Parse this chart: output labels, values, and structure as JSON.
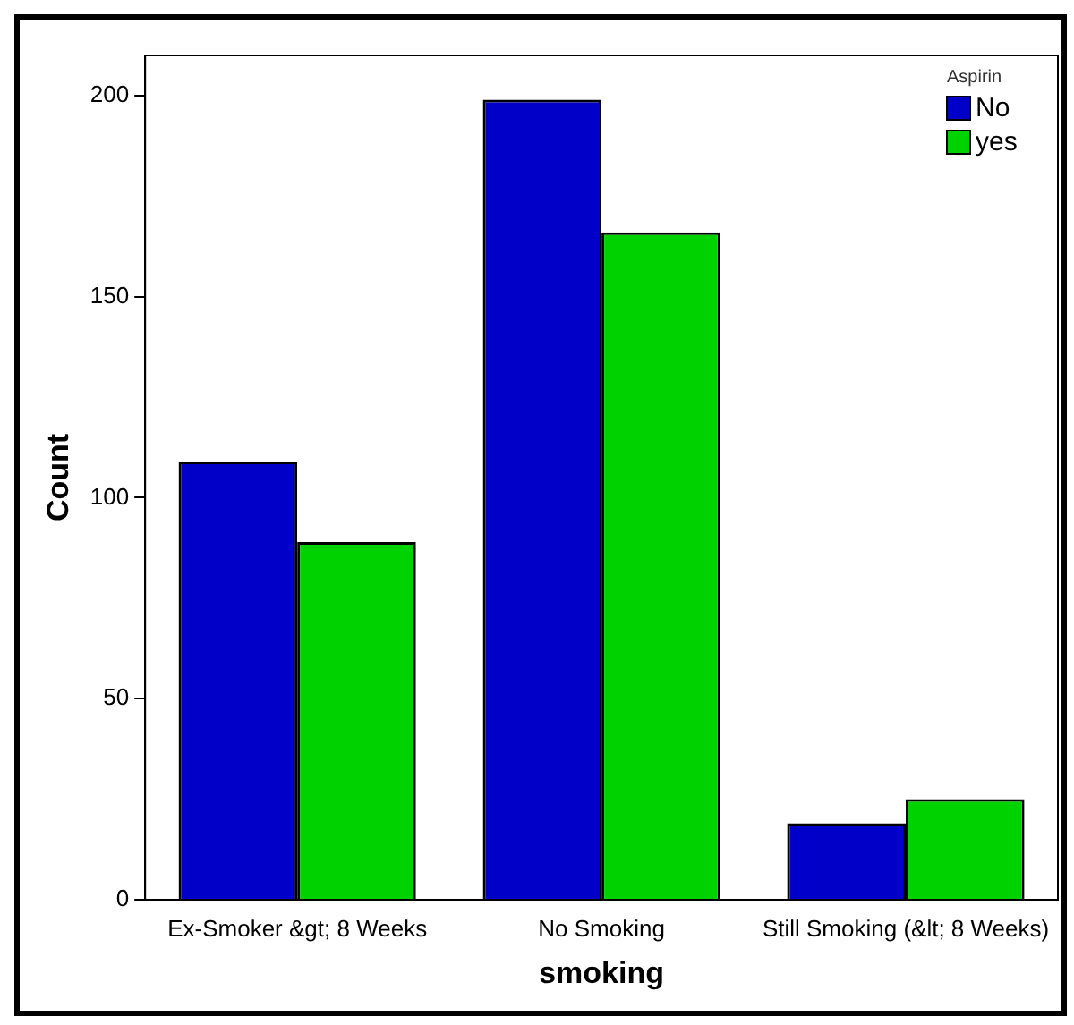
{
  "chart_data": {
    "type": "bar",
    "xlabel": "smoking",
    "ylabel": "Count",
    "legend_title": "Aspirin",
    "categories": [
      "Ex-Smoker &gt; 8 Weeks",
      "No Smoking",
      "Still Smoking (&lt; 8 Weeks)"
    ],
    "series": [
      {
        "name": "No",
        "color": "#0000c8",
        "values": [
          109,
          199,
          19
        ]
      },
      {
        "name": "yes",
        "color": "#00d200",
        "values": [
          89,
          166,
          25
        ]
      }
    ],
    "ylim": [
      0,
      210
    ],
    "yticks": [
      0,
      50,
      100,
      150,
      200
    ],
    "grid": false,
    "legend": "top right"
  }
}
